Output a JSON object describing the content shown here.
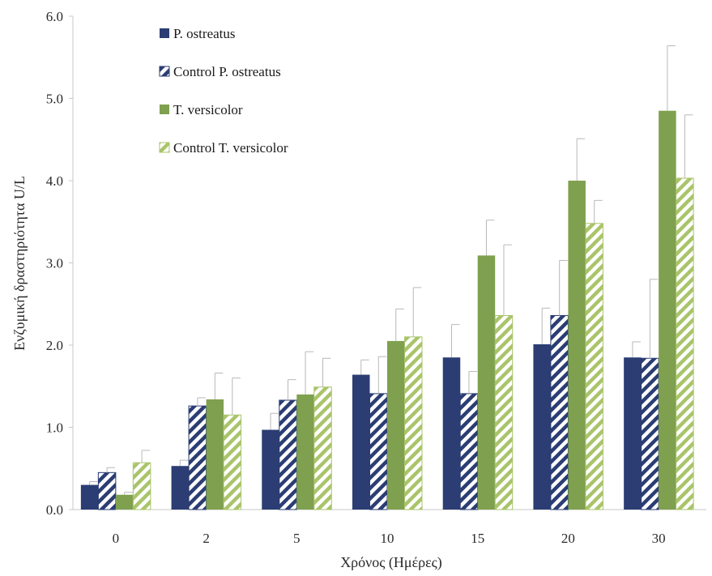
{
  "chart_data": {
    "type": "bar",
    "title": "",
    "xlabel": "Χρόνος (Ημέρες)",
    "ylabel": "Ενζυμική δραστηριότητα U/L",
    "ylim": [
      0,
      6.0
    ],
    "yticks": [
      "0.0",
      "1.0",
      "2.0",
      "3.0",
      "4.0",
      "5.0",
      "6.0"
    ],
    "categories": [
      "0",
      "2",
      "5",
      "10",
      "15",
      "20",
      "30"
    ],
    "legend_position": "top-left",
    "grid": false,
    "series": [
      {
        "name": "P. ostreatus",
        "color": "#2b3d73",
        "pattern": "solid",
        "values": [
          0.3,
          0.53,
          0.97,
          1.64,
          1.85,
          2.01,
          1.85
        ],
        "errors": [
          0.04,
          0.07,
          0.2,
          0.18,
          0.4,
          0.44,
          0.19
        ]
      },
      {
        "name": "Control P. ostreatus",
        "color": "#2b3d73",
        "pattern": "hatched",
        "values": [
          0.45,
          1.26,
          1.33,
          1.41,
          1.41,
          2.36,
          1.84
        ],
        "errors": [
          0.06,
          0.1,
          0.25,
          0.45,
          0.27,
          0.67,
          0.96
        ]
      },
      {
        "name": "T. versicolor",
        "color": "#7fa04e",
        "pattern": "solid",
        "values": [
          0.18,
          1.34,
          1.4,
          2.05,
          3.09,
          4.0,
          4.85
        ],
        "errors": [
          0.03,
          0.32,
          0.52,
          0.39,
          0.43,
          0.51,
          0.79
        ]
      },
      {
        "name": "Control T. versicolor",
        "color": "#a9c46a",
        "pattern": "hatched",
        "values": [
          0.57,
          1.15,
          1.49,
          2.1,
          2.36,
          3.48,
          4.03
        ],
        "errors": [
          0.15,
          0.45,
          0.35,
          0.6,
          0.86,
          0.28,
          0.77
        ]
      }
    ]
  }
}
